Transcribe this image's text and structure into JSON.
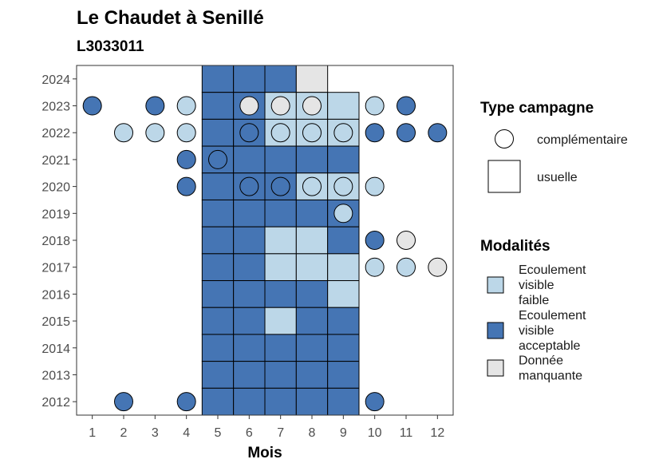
{
  "chart_data": {
    "type": "heatmap",
    "title": "Le Chaudet à Senillé",
    "subtitle": "L3033011",
    "xlabel": "Mois",
    "ylabel": "",
    "x_ticks": [
      1,
      2,
      3,
      4,
      5,
      6,
      7,
      8,
      9,
      10,
      11,
      12
    ],
    "y_ticks": [
      2012,
      2013,
      2014,
      2015,
      2016,
      2017,
      2018,
      2019,
      2020,
      2021,
      2022,
      2023,
      2024
    ],
    "xlim": [
      0.5,
      12.5
    ],
    "ylim": [
      2011.5,
      2024.5
    ],
    "grid": false,
    "modalites": [
      {
        "key": "faible",
        "lines": [
          "Ecoulement",
          "visible",
          "faible"
        ],
        "color": "#bcd7e8"
      },
      {
        "key": "acceptable",
        "lines": [
          "Ecoulement",
          "visible",
          "acceptable"
        ],
        "color": "#4575b4"
      },
      {
        "key": "manquante",
        "lines": [
          "Donnée",
          "manquante"
        ],
        "color": "#e5e5e5"
      }
    ],
    "type_campagne": {
      "title": "Type campagne",
      "items": [
        {
          "key": "complementaire",
          "label": "complémentaire",
          "shape": "circle"
        },
        {
          "key": "usuelle",
          "label": "usuelle",
          "shape": "square"
        }
      ]
    },
    "modalites_title": "Modalités",
    "usuelle": [
      {
        "year": 2024,
        "month": 5,
        "m": "acceptable"
      },
      {
        "year": 2024,
        "month": 6,
        "m": "acceptable"
      },
      {
        "year": 2024,
        "month": 7,
        "m": "acceptable"
      },
      {
        "year": 2024,
        "month": 8,
        "m": "manquante"
      },
      {
        "year": 2023,
        "month": 5,
        "m": "acceptable"
      },
      {
        "year": 2023,
        "month": 6,
        "m": "acceptable"
      },
      {
        "year": 2023,
        "month": 7,
        "m": "faible"
      },
      {
        "year": 2023,
        "month": 8,
        "m": "faible"
      },
      {
        "year": 2023,
        "month": 9,
        "m": "faible"
      },
      {
        "year": 2022,
        "month": 5,
        "m": "acceptable"
      },
      {
        "year": 2022,
        "month": 6,
        "m": "acceptable"
      },
      {
        "year": 2022,
        "month": 7,
        "m": "faible"
      },
      {
        "year": 2022,
        "month": 8,
        "m": "faible"
      },
      {
        "year": 2022,
        "month": 9,
        "m": "faible"
      },
      {
        "year": 2021,
        "month": 5,
        "m": "acceptable"
      },
      {
        "year": 2021,
        "month": 6,
        "m": "acceptable"
      },
      {
        "year": 2021,
        "month": 7,
        "m": "acceptable"
      },
      {
        "year": 2021,
        "month": 8,
        "m": "acceptable"
      },
      {
        "year": 2021,
        "month": 9,
        "m": "acceptable"
      },
      {
        "year": 2020,
        "month": 5,
        "m": "acceptable"
      },
      {
        "year": 2020,
        "month": 6,
        "m": "acceptable"
      },
      {
        "year": 2020,
        "month": 7,
        "m": "acceptable"
      },
      {
        "year": 2020,
        "month": 8,
        "m": "faible"
      },
      {
        "year": 2020,
        "month": 9,
        "m": "faible"
      },
      {
        "year": 2019,
        "month": 5,
        "m": "acceptable"
      },
      {
        "year": 2019,
        "month": 6,
        "m": "acceptable"
      },
      {
        "year": 2019,
        "month": 7,
        "m": "acceptable"
      },
      {
        "year": 2019,
        "month": 8,
        "m": "acceptable"
      },
      {
        "year": 2019,
        "month": 9,
        "m": "acceptable"
      },
      {
        "year": 2018,
        "month": 5,
        "m": "acceptable"
      },
      {
        "year": 2018,
        "month": 6,
        "m": "acceptable"
      },
      {
        "year": 2018,
        "month": 7,
        "m": "faible"
      },
      {
        "year": 2018,
        "month": 8,
        "m": "faible"
      },
      {
        "year": 2018,
        "month": 9,
        "m": "acceptable"
      },
      {
        "year": 2017,
        "month": 5,
        "m": "acceptable"
      },
      {
        "year": 2017,
        "month": 6,
        "m": "acceptable"
      },
      {
        "year": 2017,
        "month": 7,
        "m": "faible"
      },
      {
        "year": 2017,
        "month": 8,
        "m": "faible"
      },
      {
        "year": 2017,
        "month": 9,
        "m": "faible"
      },
      {
        "year": 2016,
        "month": 5,
        "m": "acceptable"
      },
      {
        "year": 2016,
        "month": 6,
        "m": "acceptable"
      },
      {
        "year": 2016,
        "month": 7,
        "m": "acceptable"
      },
      {
        "year": 2016,
        "month": 8,
        "m": "acceptable"
      },
      {
        "year": 2016,
        "month": 9,
        "m": "faible"
      },
      {
        "year": 2015,
        "month": 5,
        "m": "acceptable"
      },
      {
        "year": 2015,
        "month": 6,
        "m": "acceptable"
      },
      {
        "year": 2015,
        "month": 7,
        "m": "faible"
      },
      {
        "year": 2015,
        "month": 8,
        "m": "acceptable"
      },
      {
        "year": 2015,
        "month": 9,
        "m": "acceptable"
      },
      {
        "year": 2014,
        "month": 5,
        "m": "acceptable"
      },
      {
        "year": 2014,
        "month": 6,
        "m": "acceptable"
      },
      {
        "year": 2014,
        "month": 7,
        "m": "acceptable"
      },
      {
        "year": 2014,
        "month": 8,
        "m": "acceptable"
      },
      {
        "year": 2014,
        "month": 9,
        "m": "acceptable"
      },
      {
        "year": 2013,
        "month": 5,
        "m": "acceptable"
      },
      {
        "year": 2013,
        "month": 6,
        "m": "acceptable"
      },
      {
        "year": 2013,
        "month": 7,
        "m": "acceptable"
      },
      {
        "year": 2013,
        "month": 8,
        "m": "acceptable"
      },
      {
        "year": 2013,
        "month": 9,
        "m": "acceptable"
      },
      {
        "year": 2012,
        "month": 5,
        "m": "acceptable"
      },
      {
        "year": 2012,
        "month": 6,
        "m": "acceptable"
      },
      {
        "year": 2012,
        "month": 7,
        "m": "acceptable"
      },
      {
        "year": 2012,
        "month": 8,
        "m": "acceptable"
      },
      {
        "year": 2012,
        "month": 9,
        "m": "acceptable"
      }
    ],
    "complementaire": [
      {
        "year": 2023,
        "month": 1,
        "m": "acceptable"
      },
      {
        "year": 2023,
        "month": 3,
        "m": "acceptable"
      },
      {
        "year": 2023,
        "month": 4,
        "m": "faible"
      },
      {
        "year": 2023,
        "month": 6,
        "m": "manquante"
      },
      {
        "year": 2023,
        "month": 7,
        "m": "manquante"
      },
      {
        "year": 2023,
        "month": 8,
        "m": "manquante"
      },
      {
        "year": 2023,
        "month": 10,
        "m": "faible"
      },
      {
        "year": 2023,
        "month": 11,
        "m": "acceptable"
      },
      {
        "year": 2022,
        "month": 2,
        "m": "faible"
      },
      {
        "year": 2022,
        "month": 3,
        "m": "faible"
      },
      {
        "year": 2022,
        "month": 4,
        "m": "faible"
      },
      {
        "year": 2022,
        "month": 6,
        "m": "acceptable"
      },
      {
        "year": 2022,
        "month": 7,
        "m": "faible"
      },
      {
        "year": 2022,
        "month": 8,
        "m": "faible"
      },
      {
        "year": 2022,
        "month": 9,
        "m": "faible"
      },
      {
        "year": 2022,
        "month": 10,
        "m": "acceptable"
      },
      {
        "year": 2022,
        "month": 11,
        "m": "acceptable"
      },
      {
        "year": 2022,
        "month": 12,
        "m": "acceptable"
      },
      {
        "year": 2021,
        "month": 4,
        "m": "acceptable"
      },
      {
        "year": 2021,
        "month": 5,
        "m": "acceptable"
      },
      {
        "year": 2020,
        "month": 4,
        "m": "acceptable"
      },
      {
        "year": 2020,
        "month": 6,
        "m": "acceptable"
      },
      {
        "year": 2020,
        "month": 7,
        "m": "acceptable"
      },
      {
        "year": 2020,
        "month": 8,
        "m": "faible"
      },
      {
        "year": 2020,
        "month": 9,
        "m": "faible"
      },
      {
        "year": 2020,
        "month": 10,
        "m": "faible"
      },
      {
        "year": 2019,
        "month": 9,
        "m": "faible"
      },
      {
        "year": 2018,
        "month": 10,
        "m": "acceptable"
      },
      {
        "year": 2018,
        "month": 11,
        "m": "manquante"
      },
      {
        "year": 2017,
        "month": 10,
        "m": "faible"
      },
      {
        "year": 2017,
        "month": 11,
        "m": "faible"
      },
      {
        "year": 2017,
        "month": 12,
        "m": "manquante"
      },
      {
        "year": 2012,
        "month": 2,
        "m": "acceptable"
      },
      {
        "year": 2012,
        "month": 4,
        "m": "acceptable"
      },
      {
        "year": 2012,
        "month": 10,
        "m": "acceptable"
      }
    ]
  }
}
